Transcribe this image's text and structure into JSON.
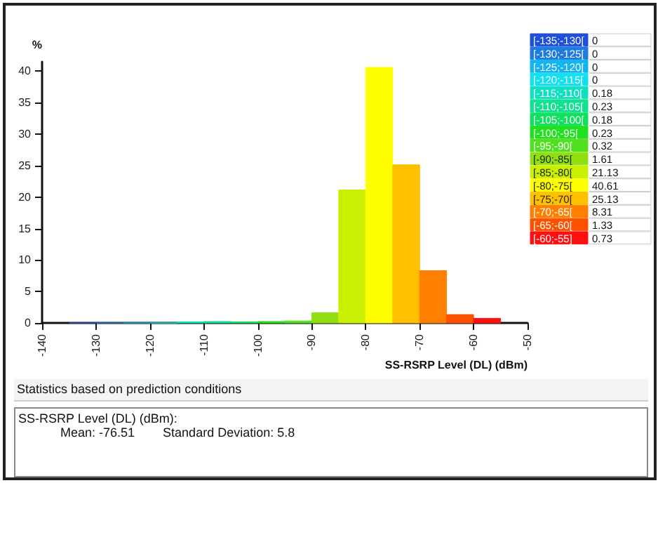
{
  "chart_data": [
    {
      "type": "histogram",
      "ylabel": "%",
      "xlabel": "SS-RSRP Level (DL) (dBm)",
      "bins": [
        -135,
        -130,
        -125,
        -120,
        -115,
        -110,
        -105,
        -100,
        -95,
        -90,
        -85,
        -80,
        -75,
        -70,
        -65,
        -60,
        -55
      ],
      "values": [
        0,
        0,
        0,
        0,
        0.18,
        0.23,
        0.18,
        0.23,
        0.32,
        1.61,
        21.13,
        40.61,
        25.13,
        8.31,
        1.33,
        0.73
      ],
      "colors": [
        "#1f4fd8",
        "#1e7be0",
        "#14b4ee",
        "#10e0f0",
        "#10e0c0",
        "#10e090",
        "#10e060",
        "#20e020",
        "#50e020",
        "#90e010",
        "#c8f000",
        "#ffff00",
        "#ffc000",
        "#ff8000",
        "#ff5000",
        "#ff1010"
      ],
      "xlim": [
        -140,
        -50
      ],
      "xticks": [
        -140,
        -130,
        -120,
        -110,
        -100,
        -90,
        -80,
        -70,
        -60,
        -50
      ],
      "ylim": [
        0,
        41.5
      ],
      "yticks": [
        0,
        5,
        10,
        15,
        20,
        25,
        30,
        35,
        40
      ],
      "annotations": [
        "Statistics based on prediction conditions",
        "SS-RSRP Level (DL) (dBm):",
        "Mean: -76.51",
        "Standard Deviation: 5.8"
      ]
    },
    {
      "type": "other",
      "data_labels": true,
      "categories": [
        "[-135;-130[",
        "[-130;-125[",
        "[-125;-120[",
        "[-120;-115[",
        "[-115;-110[",
        "[-110;-105[",
        "[-105;-100[",
        "[-100;-95[",
        "[-95;-90[",
        "[-90;-85[",
        "[-85;-80[",
        "[-80;-75[",
        "[-75;-70[",
        "[-70;-65[",
        "[-65;-60[",
        "[-60;-55]"
      ],
      "values": [
        0,
        0,
        0,
        0,
        0.18,
        0.23,
        0.18,
        0.23,
        0.32,
        1.61,
        21.13,
        40.61,
        25.13,
        8.31,
        1.33,
        0.73
      ],
      "colors": [
        "#1f4fd8",
        "#1e7be0",
        "#14b4ee",
        "#10e0f0",
        "#10e0c0",
        "#10e090",
        "#10e060",
        "#20e020",
        "#50e020",
        "#90e010",
        "#c8f000",
        "#ffff00",
        "#ffc000",
        "#ff8000",
        "#ff5000",
        "#ff1010"
      ]
    }
  ]
}
